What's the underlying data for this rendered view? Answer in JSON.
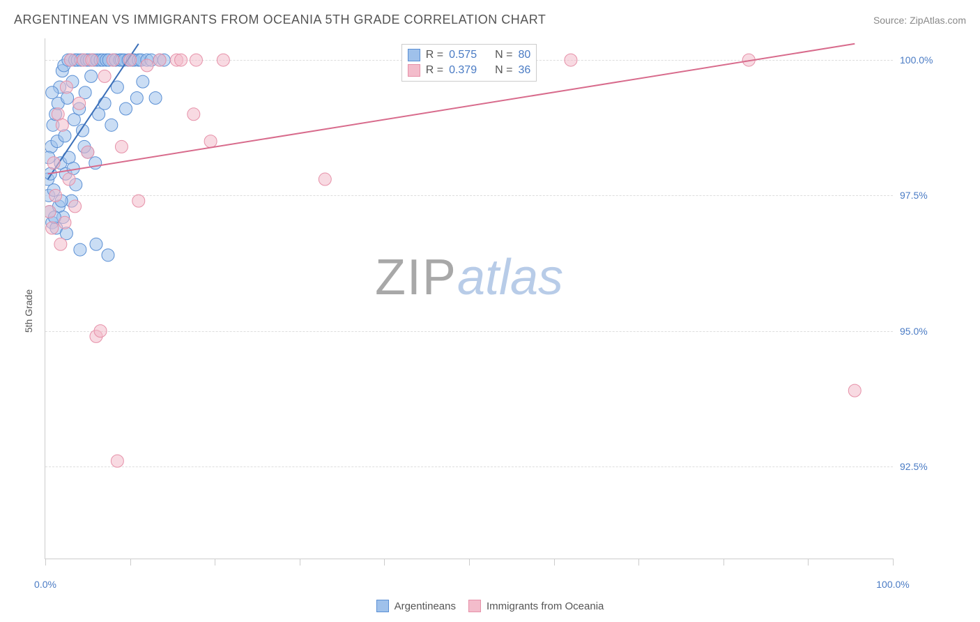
{
  "title": "ARGENTINEAN VS IMMIGRANTS FROM OCEANIA 5TH GRADE CORRELATION CHART",
  "source": "Source: ZipAtlas.com",
  "y_axis_label": "5th Grade",
  "watermark": {
    "part1": "ZIP",
    "part2": "atlas"
  },
  "chart": {
    "type": "scatter",
    "xlim": [
      0,
      100
    ],
    "ylim": [
      90.8,
      100.4
    ],
    "x_ticks": [
      0,
      10,
      20,
      30,
      40,
      50,
      60,
      70,
      80,
      90,
      100
    ],
    "x_tick_labels": {
      "0": "0.0%",
      "100": "100.0%"
    },
    "y_ticks": [
      92.5,
      95.0,
      97.5,
      100.0
    ],
    "y_tick_labels": [
      "92.5%",
      "95.0%",
      "97.5%",
      "100.0%"
    ],
    "background_color": "#ffffff",
    "grid_color": "#dddddd",
    "axis_color": "#cccccc",
    "tick_label_color": "#4a7bc4",
    "series": [
      {
        "name": "Argentineans",
        "fill": "#9fc1eb",
        "stroke": "#5a8fd4",
        "fill_opacity": 0.55,
        "r": 9,
        "R": 0.575,
        "N": 80,
        "trend": {
          "x1": 0.3,
          "y1": 97.8,
          "x2": 11.0,
          "y2": 100.3,
          "color": "#3b6fb8",
          "width": 2
        },
        "points": [
          [
            0.3,
            97.8
          ],
          [
            0.4,
            97.5
          ],
          [
            0.5,
            97.2
          ],
          [
            0.6,
            97.9
          ],
          [
            0.7,
            98.4
          ],
          [
            0.8,
            97.0
          ],
          [
            0.9,
            98.8
          ],
          [
            1.0,
            97.6
          ],
          [
            1.2,
            99.0
          ],
          [
            1.3,
            96.9
          ],
          [
            1.4,
            98.5
          ],
          [
            1.5,
            99.2
          ],
          [
            1.6,
            97.3
          ],
          [
            1.7,
            99.5
          ],
          [
            1.8,
            98.1
          ],
          [
            2.0,
            99.8
          ],
          [
            2.1,
            97.1
          ],
          [
            2.2,
            99.9
          ],
          [
            2.3,
            98.6
          ],
          [
            2.5,
            96.8
          ],
          [
            2.6,
            99.3
          ],
          [
            2.7,
            100.0
          ],
          [
            2.8,
            98.2
          ],
          [
            3.0,
            100.0
          ],
          [
            3.1,
            97.4
          ],
          [
            3.2,
            99.6
          ],
          [
            3.4,
            98.9
          ],
          [
            3.5,
            100.0
          ],
          [
            3.6,
            97.7
          ],
          [
            3.8,
            100.0
          ],
          [
            4.0,
            99.1
          ],
          [
            4.1,
            96.5
          ],
          [
            4.2,
            100.0
          ],
          [
            4.4,
            98.7
          ],
          [
            4.5,
            100.0
          ],
          [
            4.7,
            99.4
          ],
          [
            4.9,
            100.0
          ],
          [
            5.0,
            98.3
          ],
          [
            5.2,
            100.0
          ],
          [
            5.4,
            99.7
          ],
          [
            5.5,
            100.0
          ],
          [
            5.7,
            100.0
          ],
          [
            6.0,
            96.6
          ],
          [
            6.1,
            100.0
          ],
          [
            6.3,
            99.0
          ],
          [
            6.5,
            100.0
          ],
          [
            6.8,
            100.0
          ],
          [
            7.0,
            99.2
          ],
          [
            7.2,
            100.0
          ],
          [
            7.5,
            100.0
          ],
          [
            7.8,
            98.8
          ],
          [
            8.0,
            100.0
          ],
          [
            8.3,
            100.0
          ],
          [
            8.5,
            99.5
          ],
          [
            8.8,
            100.0
          ],
          [
            9.0,
            100.0
          ],
          [
            9.3,
            100.0
          ],
          [
            9.5,
            99.1
          ],
          [
            9.8,
            100.0
          ],
          [
            10.0,
            100.0
          ],
          [
            10.3,
            100.0
          ],
          [
            10.5,
            100.0
          ],
          [
            10.8,
            99.3
          ],
          [
            11.0,
            100.0
          ],
          [
            11.3,
            100.0
          ],
          [
            11.5,
            99.6
          ],
          [
            12.0,
            100.0
          ],
          [
            12.5,
            100.0
          ],
          [
            13.0,
            99.3
          ],
          [
            13.5,
            100.0
          ],
          [
            14.0,
            100.0
          ],
          [
            7.4,
            96.4
          ],
          [
            1.1,
            97.1
          ],
          [
            1.9,
            97.4
          ],
          [
            2.4,
            97.9
          ],
          [
            3.3,
            98.0
          ],
          [
            4.6,
            98.4
          ],
          [
            5.9,
            98.1
          ],
          [
            0.4,
            98.2
          ],
          [
            0.8,
            99.4
          ]
        ]
      },
      {
        "name": "Immigrants from Oceania",
        "fill": "#f3bccb",
        "stroke": "#e690a8",
        "fill_opacity": 0.55,
        "r": 9,
        "R": 0.379,
        "N": 36,
        "trend": {
          "x1": 0.3,
          "y1": 97.9,
          "x2": 95.5,
          "y2": 100.3,
          "color": "#d86b8c",
          "width": 2
        },
        "points": [
          [
            0.5,
            97.2
          ],
          [
            0.8,
            96.9
          ],
          [
            1.0,
            98.1
          ],
          [
            1.2,
            97.5
          ],
          [
            1.5,
            99.0
          ],
          [
            1.8,
            96.6
          ],
          [
            2.0,
            98.8
          ],
          [
            2.3,
            97.0
          ],
          [
            2.5,
            99.5
          ],
          [
            2.8,
            97.8
          ],
          [
            3.0,
            100.0
          ],
          [
            3.5,
            97.3
          ],
          [
            4.0,
            99.2
          ],
          [
            4.5,
            100.0
          ],
          [
            5.0,
            98.3
          ],
          [
            5.5,
            100.0
          ],
          [
            6.0,
            94.9
          ],
          [
            6.5,
            95.0
          ],
          [
            7.0,
            99.7
          ],
          [
            8.0,
            100.0
          ],
          [
            9.0,
            98.4
          ],
          [
            10.0,
            100.0
          ],
          [
            11.0,
            97.4
          ],
          [
            12.0,
            99.9
          ],
          [
            13.5,
            100.0
          ],
          [
            15.5,
            100.0
          ],
          [
            17.5,
            99.0
          ],
          [
            19.5,
            98.5
          ],
          [
            21.0,
            100.0
          ],
          [
            33.0,
            97.8
          ],
          [
            62.0,
            100.0
          ],
          [
            83.0,
            100.0
          ],
          [
            95.5,
            93.9
          ],
          [
            8.5,
            92.6
          ],
          [
            16.0,
            100.0
          ],
          [
            17.8,
            100.0
          ]
        ]
      }
    ]
  },
  "stats_box": {
    "rows": [
      {
        "swatch_fill": "#9fc1eb",
        "swatch_stroke": "#5a8fd4",
        "r_label": "R =",
        "r_val": "0.575",
        "n_label": "N =",
        "n_val": "80"
      },
      {
        "swatch_fill": "#f3bccb",
        "swatch_stroke": "#e690a8",
        "r_label": "R =",
        "r_val": "0.379",
        "n_label": "N =",
        "n_val": "36"
      }
    ]
  },
  "bottom_legend": [
    {
      "swatch_fill": "#9fc1eb",
      "swatch_stroke": "#5a8fd4",
      "label": "Argentineans"
    },
    {
      "swatch_fill": "#f3bccb",
      "swatch_stroke": "#e690a8",
      "label": "Immigrants from Oceania"
    }
  ]
}
